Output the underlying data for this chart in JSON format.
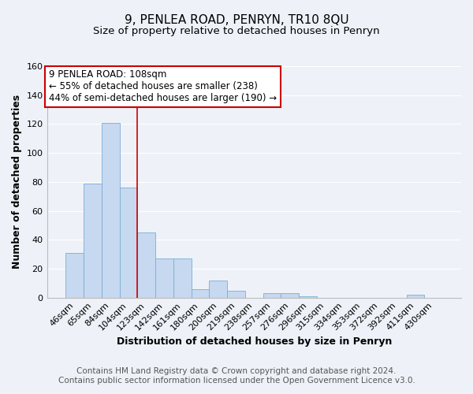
{
  "title": "9, PENLEA ROAD, PENRYN, TR10 8QU",
  "subtitle": "Size of property relative to detached houses in Penryn",
  "xlabel": "Distribution of detached houses by size in Penryn",
  "ylabel": "Number of detached properties",
  "categories": [
    "46sqm",
    "65sqm",
    "84sqm",
    "104sqm",
    "123sqm",
    "142sqm",
    "161sqm",
    "180sqm",
    "200sqm",
    "219sqm",
    "238sqm",
    "257sqm",
    "276sqm",
    "296sqm",
    "315sqm",
    "334sqm",
    "353sqm",
    "372sqm",
    "392sqm",
    "411sqm",
    "430sqm"
  ],
  "values": [
    31,
    79,
    121,
    76,
    45,
    27,
    27,
    6,
    12,
    5,
    0,
    3,
    3,
    1,
    0,
    0,
    0,
    0,
    0,
    2,
    0
  ],
  "bar_color": "#c6d9f0",
  "bar_edge_color": "#7aadd4",
  "vline_x": 3.5,
  "vline_color": "#cc0000",
  "ylim": [
    0,
    160
  ],
  "yticks": [
    0,
    20,
    40,
    60,
    80,
    100,
    120,
    140,
    160
  ],
  "annotation_title": "9 PENLEA ROAD: 108sqm",
  "annotation_line1": "← 55% of detached houses are smaller (238)",
  "annotation_line2": "44% of semi-detached houses are larger (190) →",
  "annotation_box_color": "#ffffff",
  "annotation_box_edge_color": "#cc0000",
  "footer_line1": "Contains HM Land Registry data © Crown copyright and database right 2024.",
  "footer_line2": "Contains public sector information licensed under the Open Government Licence v3.0.",
  "background_color": "#eef2f8",
  "grid_color": "#ffffff",
  "title_fontsize": 11,
  "subtitle_fontsize": 9.5,
  "axis_label_fontsize": 9,
  "tick_fontsize": 8,
  "footer_fontsize": 7.5
}
